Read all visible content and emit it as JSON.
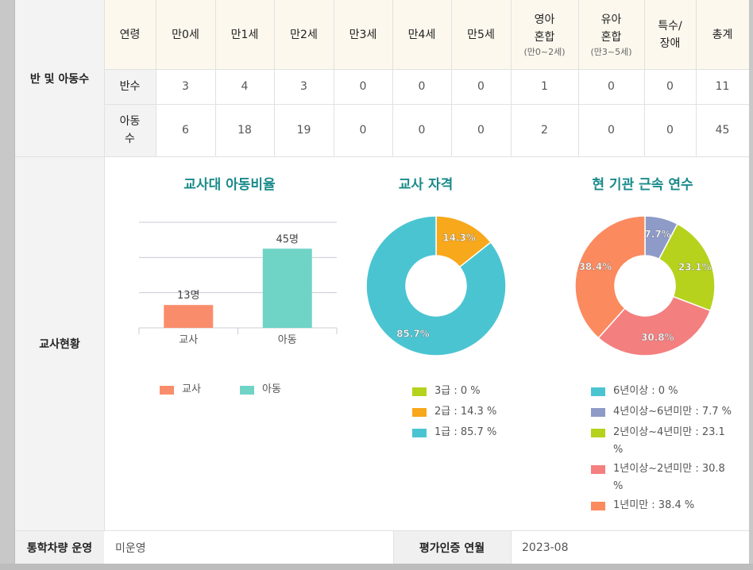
{
  "section1": {
    "side_label": "반 및 아동수",
    "header": [
      {
        "main": "연령",
        "sub": ""
      },
      {
        "main": "만0세",
        "sub": ""
      },
      {
        "main": "만1세",
        "sub": ""
      },
      {
        "main": "만2세",
        "sub": ""
      },
      {
        "main": "만3세",
        "sub": ""
      },
      {
        "main": "만4세",
        "sub": ""
      },
      {
        "main": "만5세",
        "sub": ""
      },
      {
        "main": "영아\n혼합",
        "sub": "(만0~2세)"
      },
      {
        "main": "유아\n혼합",
        "sub": "(만3~5세)"
      },
      {
        "main": "특수/\n장애",
        "sub": ""
      },
      {
        "main": "총계",
        "sub": ""
      }
    ],
    "rows": [
      {
        "label": "반수",
        "values": [
          "3",
          "4",
          "3",
          "0",
          "0",
          "0",
          "1",
          "0",
          "0",
          "11"
        ]
      },
      {
        "label": "아동\n수",
        "values": [
          "6",
          "18",
          "19",
          "0",
          "0",
          "0",
          "2",
          "0",
          "0",
          "45"
        ]
      }
    ]
  },
  "section2": {
    "side_label": "교사현황",
    "ratio_chart": {
      "title": "교사대 아동비율",
      "legend": [
        "교사",
        "아동"
      ]
    },
    "qual_chart": {
      "title": "교사 자격",
      "legend": [
        "3급 : 0 %",
        "2급 : 14.3 %",
        "1급 : 85.7 %"
      ]
    },
    "tenure_chart": {
      "title": "현 기관 근속 연수",
      "legend": [
        "6년이상 : 0 %",
        "4년이상~6년미만 : 7.7 %",
        "2년이상~4년미만 : 23.1\n%",
        "1년이상~2년미만 : 30.8\n%",
        "1년미만 : 38.4 %"
      ]
    }
  },
  "bottom": {
    "bus_label": "통학차량 운영",
    "bus_value": "미운영",
    "cert_label": "평가인증 연월",
    "cert_value": "2023-08"
  },
  "colors": {
    "teacher": "#f98d6b",
    "child": "#6fd4c6",
    "grade3": "#b6d21d",
    "grade2": "#f7a81b",
    "grade1": "#4bc4d2",
    "t6": "#4bc4d2",
    "t4": "#8e9bc8",
    "t2": "#b6d21d",
    "t1": "#f47f7f",
    "t0": "#fb8a5f",
    "title": "#1a8a8a"
  },
  "chart_data": [
    {
      "type": "bar",
      "title": "교사대 아동비율",
      "categories": [
        "교사",
        "아동"
      ],
      "values": [
        13,
        45
      ],
      "data_labels": [
        "13명",
        "45명"
      ],
      "legend": "bottom"
    },
    {
      "type": "pie",
      "title": "교사 자격",
      "labels": [
        "3급",
        "2급",
        "1급"
      ],
      "values": [
        0,
        14.3,
        85.7
      ],
      "data_labels": [
        "",
        "14.3%",
        "85.7%"
      ],
      "legend": "bottom"
    },
    {
      "type": "pie",
      "title": "현 기관 근속 연수",
      "labels": [
        "6년이상",
        "4년이상~6년미만",
        "2년이상~4년미만",
        "1년이상~2년미만",
        "1년미만"
      ],
      "values": [
        0,
        7.7,
        23.1,
        30.8,
        38.4
      ],
      "data_labels": [
        "",
        "7.7%",
        "23.1%",
        "30.8%",
        "38.4%"
      ],
      "legend": "bottom"
    }
  ]
}
